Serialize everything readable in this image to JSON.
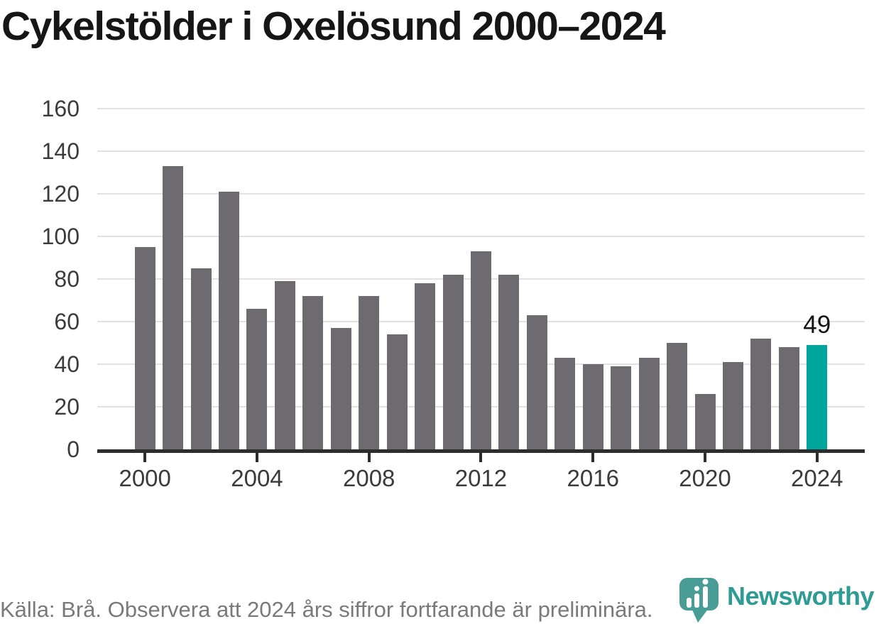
{
  "title": "Cykelstölder i Oxelösund 2000–2024",
  "chart_data": {
    "type": "bar",
    "x": [
      2000,
      2001,
      2002,
      2003,
      2004,
      2005,
      2006,
      2007,
      2008,
      2009,
      2010,
      2011,
      2012,
      2013,
      2014,
      2015,
      2016,
      2017,
      2018,
      2019,
      2020,
      2021,
      2022,
      2023,
      2024
    ],
    "values": [
      95,
      133,
      85,
      121,
      66,
      79,
      72,
      57,
      72,
      54,
      78,
      82,
      93,
      82,
      63,
      43,
      40,
      39,
      43,
      50,
      26,
      41,
      52,
      48,
      49
    ],
    "title": "Cykelstölder i Oxelösund 2000–2024",
    "xlabel": "",
    "ylabel": "",
    "ylim": [
      0,
      160
    ],
    "yticks": [
      0,
      20,
      40,
      60,
      80,
      100,
      120,
      140,
      160
    ],
    "xticks": [
      2000,
      2004,
      2008,
      2012,
      2016,
      2020,
      2024
    ],
    "grid": true,
    "legend": "none",
    "highlight_index": 24,
    "highlight_label": "49"
  },
  "colors": {
    "bar": "#6d6b70",
    "highlight": "#00a69c",
    "grid": "#e2e2e2",
    "axis": "#2d2d2d",
    "tick_label": "#3b3b3b",
    "annotation": "#151515",
    "footer_text": "#7a7a7a",
    "brand_teal": "#2e9c95",
    "icon_teal": "#4a9d97"
  },
  "footer": {
    "source_text": "Källa: Brå. Observera att 2024 års siffror fortfarande är preliminära.",
    "brand": "Newsworthy"
  }
}
